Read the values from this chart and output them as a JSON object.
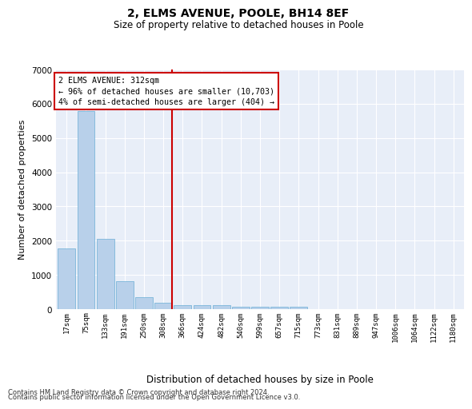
{
  "title": "2, ELMS AVENUE, POOLE, BH14 8EF",
  "subtitle": "Size of property relative to detached houses in Poole",
  "xlabel": "Distribution of detached houses by size in Poole",
  "ylabel": "Number of detached properties",
  "bar_color": "#b8d0ea",
  "bar_edge_color": "#6aaed6",
  "background_color": "#e8eef8",
  "grid_color": "#ffffff",
  "vline_color": "#cc0000",
  "categories": [
    "17sqm",
    "75sqm",
    "133sqm",
    "191sqm",
    "250sqm",
    "308sqm",
    "366sqm",
    "424sqm",
    "482sqm",
    "540sqm",
    "599sqm",
    "657sqm",
    "715sqm",
    "773sqm",
    "831sqm",
    "889sqm",
    "947sqm",
    "1006sqm",
    "1064sqm",
    "1122sqm",
    "1180sqm"
  ],
  "values": [
    1780,
    5780,
    2060,
    820,
    340,
    185,
    115,
    110,
    110,
    75,
    70,
    65,
    60,
    0,
    0,
    0,
    0,
    0,
    0,
    0,
    0
  ],
  "ylim": [
    0,
    7000
  ],
  "yticks": [
    0,
    1000,
    2000,
    3000,
    4000,
    5000,
    6000,
    7000
  ],
  "annotation_title": "2 ELMS AVENUE: 312sqm",
  "annotation_line1": "← 96% of detached houses are smaller (10,703)",
  "annotation_line2": "4% of semi-detached houses are larger (404) →",
  "footnote1": "Contains HM Land Registry data © Crown copyright and database right 2024.",
  "footnote2": "Contains public sector information licensed under the Open Government Licence v3.0.",
  "vline_index": 5
}
